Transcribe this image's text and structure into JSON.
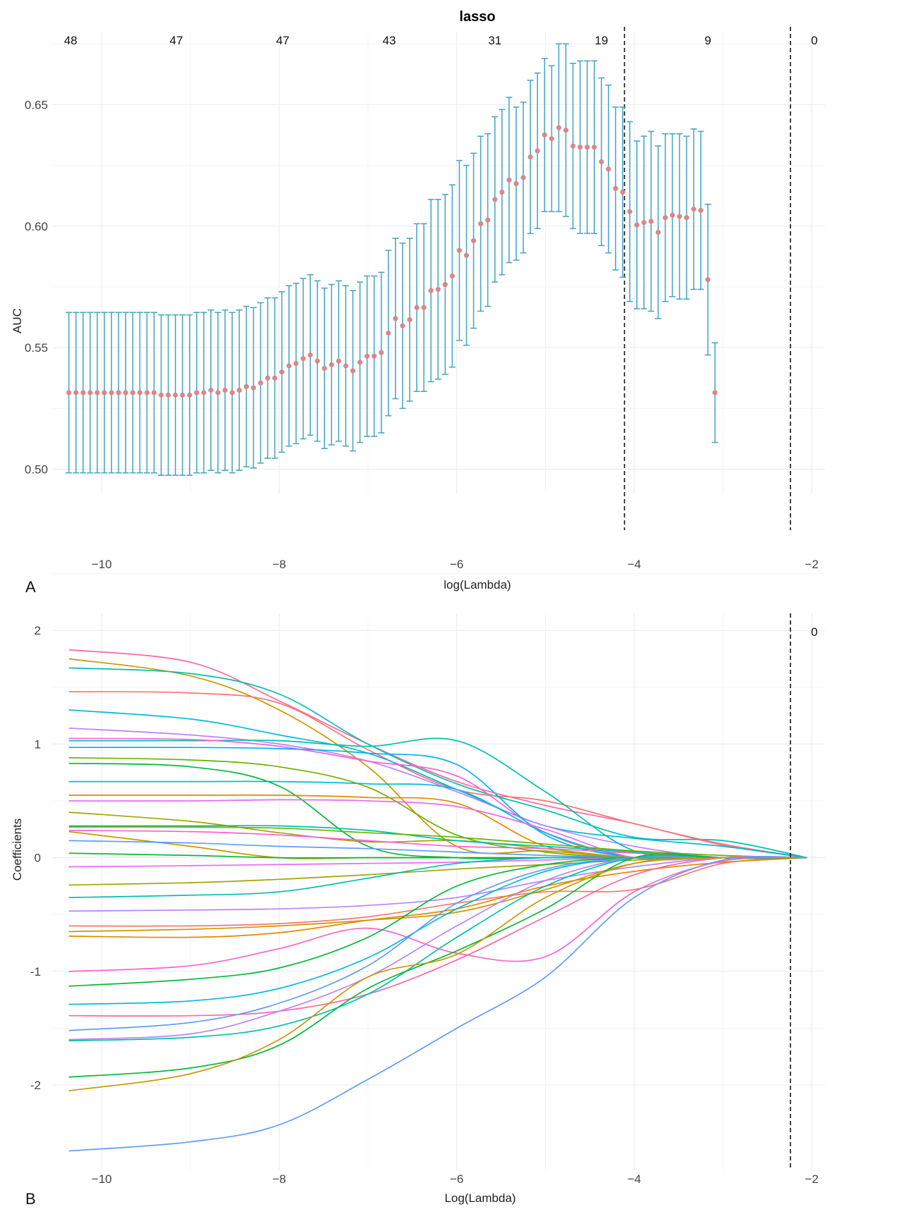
{
  "colors": {
    "errorbar": "#4aa8c4",
    "point": "#d9878a",
    "grid": "#ececec",
    "vline": "#111111",
    "palette": [
      "#f8766d",
      "#e58700",
      "#c99800",
      "#a3a500",
      "#6bb100",
      "#00ba38",
      "#00bf7d",
      "#00c0af",
      "#00bcd8",
      "#00b0f6",
      "#619cff",
      "#b983ff",
      "#e76bf3",
      "#fd61d1",
      "#ff67a4"
    ]
  },
  "panels": {
    "a_label": "A",
    "b_label": "B"
  },
  "chart_data": [
    {
      "type": "scatter",
      "panel": "A",
      "title": "lasso",
      "xlabel": "log(Lambda)",
      "ylabel": "AUC",
      "xlim": [
        -10.55,
        -1.85
      ],
      "ylim": [
        0.49,
        0.68
      ],
      "grid": true,
      "xticks": [
        -10,
        -8,
        -6,
        -4,
        -2
      ],
      "xtick_labels": [
        "−10",
        "−8",
        "−6",
        "−4",
        "−2"
      ],
      "yticks": [
        0.5,
        0.55,
        0.6,
        0.65
      ],
      "ytick_labels": [
        "0.50",
        "0.55",
        "0.60",
        "0.65"
      ],
      "top_axis": {
        "positions": [
          -10.35,
          -9.16,
          -7.96,
          -6.76,
          -5.57,
          -4.37,
          -3.17,
          -1.97
        ],
        "labels": [
          "48",
          "47",
          "47",
          "43",
          "31",
          "19",
          "9",
          "0"
        ]
      },
      "vlines": [
        -4.11,
        -2.24
      ],
      "x_start": -10.37,
      "x_step": 0.08,
      "mean": [
        0.5315,
        0.5315,
        0.5315,
        0.5315,
        0.5315,
        0.5315,
        0.5315,
        0.5315,
        0.5315,
        0.5315,
        0.5315,
        0.5315,
        0.5315,
        0.5305,
        0.5305,
        0.5305,
        0.5305,
        0.5305,
        0.5315,
        0.5315,
        0.5325,
        0.5315,
        0.5325,
        0.5315,
        0.5325,
        0.534,
        0.5335,
        0.5355,
        0.5375,
        0.5375,
        0.54,
        0.5425,
        0.5435,
        0.5455,
        0.547,
        0.5445,
        0.5415,
        0.543,
        0.5445,
        0.5425,
        0.5405,
        0.544,
        0.5465,
        0.5465,
        0.548,
        0.556,
        0.562,
        0.559,
        0.5615,
        0.5665,
        0.5665,
        0.5735,
        0.574,
        0.576,
        0.5795,
        0.59,
        0.588,
        0.594,
        0.601,
        0.6025,
        0.611,
        0.614,
        0.619,
        0.6175,
        0.62,
        0.6285,
        0.631,
        0.6375,
        0.636,
        0.6405,
        0.6395,
        0.633,
        0.6325,
        0.6325,
        0.6325,
        0.6265,
        0.6235,
        0.6155,
        0.614,
        0.606,
        0.6005,
        0.6015,
        0.602,
        0.5975,
        0.6035,
        0.6045,
        0.604,
        0.6035,
        0.607,
        0.6065,
        0.578,
        0.5315
      ],
      "lower": [
        0.4985,
        0.4985,
        0.4985,
        0.4985,
        0.4985,
        0.4985,
        0.4985,
        0.4985,
        0.4985,
        0.4985,
        0.4985,
        0.4985,
        0.4985,
        0.4975,
        0.4975,
        0.4975,
        0.4975,
        0.4975,
        0.4985,
        0.4985,
        0.4995,
        0.4985,
        0.4995,
        0.4985,
        0.4995,
        0.501,
        0.5005,
        0.5025,
        0.5045,
        0.5045,
        0.507,
        0.5095,
        0.5105,
        0.5125,
        0.514,
        0.5115,
        0.5085,
        0.51,
        0.5115,
        0.5095,
        0.5075,
        0.511,
        0.5135,
        0.5135,
        0.515,
        0.522,
        0.529,
        0.525,
        0.528,
        0.532,
        0.532,
        0.536,
        0.537,
        0.539,
        0.542,
        0.553,
        0.551,
        0.558,
        0.565,
        0.567,
        0.577,
        0.58,
        0.585,
        0.586,
        0.589,
        0.597,
        0.599,
        0.606,
        0.606,
        0.606,
        0.604,
        0.599,
        0.597,
        0.597,
        0.597,
        0.592,
        0.589,
        0.582,
        0.579,
        0.569,
        0.566,
        0.566,
        0.565,
        0.562,
        0.569,
        0.571,
        0.57,
        0.57,
        0.574,
        0.574,
        0.547,
        0.511
      ],
      "upper": [
        0.5645,
        0.5645,
        0.5645,
        0.5645,
        0.5645,
        0.5645,
        0.5645,
        0.5645,
        0.5645,
        0.5645,
        0.5645,
        0.5645,
        0.5645,
        0.5635,
        0.5635,
        0.5635,
        0.5635,
        0.5635,
        0.5645,
        0.5645,
        0.5655,
        0.5645,
        0.5655,
        0.5645,
        0.5655,
        0.567,
        0.5665,
        0.5685,
        0.5705,
        0.5705,
        0.573,
        0.5755,
        0.5765,
        0.5785,
        0.58,
        0.5775,
        0.5745,
        0.576,
        0.5775,
        0.5755,
        0.5735,
        0.577,
        0.5795,
        0.5795,
        0.581,
        0.59,
        0.595,
        0.593,
        0.595,
        0.601,
        0.601,
        0.611,
        0.611,
        0.613,
        0.617,
        0.627,
        0.625,
        0.63,
        0.637,
        0.638,
        0.645,
        0.648,
        0.653,
        0.649,
        0.651,
        0.66,
        0.663,
        0.669,
        0.666,
        0.675,
        0.675,
        0.667,
        0.668,
        0.668,
        0.668,
        0.661,
        0.658,
        0.649,
        0.649,
        0.643,
        0.635,
        0.637,
        0.639,
        0.633,
        0.638,
        0.638,
        0.638,
        0.637,
        0.64,
        0.639,
        0.609,
        0.552
      ]
    },
    {
      "type": "line",
      "panel": "B",
      "xlabel": "Log(Lambda)",
      "ylabel": "Coefficients",
      "xlim": [
        -10.55,
        -1.85
      ],
      "ylim": [
        -2.75,
        2.15
      ],
      "grid": true,
      "xticks": [
        -10,
        -8,
        -6,
        -4,
        -2
      ],
      "xtick_labels": [
        "−10",
        "−8",
        "−6",
        "−4",
        "−2"
      ],
      "yticks": [
        -2,
        -1,
        0,
        1,
        2
      ],
      "ytick_labels": [
        "-2",
        "-1",
        "0",
        "1",
        "2"
      ],
      "top_axis": {
        "positions": [
          -1.97
        ],
        "labels": [
          "0"
        ]
      },
      "vlines": [
        -2.24
      ],
      "x": [
        -10.37,
        -9,
        -8,
        -7,
        -6,
        -5,
        -4,
        -3,
        -2.05
      ],
      "series": [
        {
          "color": "#ff67a4",
          "values": [
            1.83,
            1.72,
            1.38,
            1.0,
            0.67,
            0.46,
            0.3,
            0.11,
            0.0
          ]
        },
        {
          "color": "#c99800",
          "values": [
            1.75,
            1.6,
            1.3,
            0.8,
            0.1,
            0.06,
            0.0,
            0.0,
            0.0
          ]
        },
        {
          "color": "#00c0af",
          "values": [
            1.67,
            1.62,
            1.44,
            1.0,
            0.65,
            0.42,
            0.18,
            0.15,
            0.0
          ]
        },
        {
          "color": "#f8766d",
          "values": [
            1.46,
            1.45,
            1.36,
            0.95,
            0.6,
            0.5,
            0.3,
            0.12,
            0.0
          ]
        },
        {
          "color": "#00bcd8",
          "values": [
            1.3,
            1.22,
            1.08,
            0.92,
            0.6,
            0.28,
            0.17,
            0.1,
            0.0
          ]
        },
        {
          "color": "#b983ff",
          "values": [
            1.14,
            1.08,
            1.0,
            0.85,
            0.58,
            0.28,
            0.1,
            0.0,
            0.0
          ]
        },
        {
          "color": "#00c0af",
          "values": [
            1.03,
            1.03,
            1.03,
            0.98,
            1.03,
            0.58,
            0.06,
            0.0,
            0.0
          ]
        },
        {
          "color": "#fd61d1",
          "values": [
            1.05,
            1.04,
            0.98,
            0.85,
            0.72,
            0.22,
            0.0,
            0.0,
            0.0
          ]
        },
        {
          "color": "#00b0f6",
          "values": [
            0.97,
            0.97,
            0.96,
            0.92,
            0.82,
            0.2,
            0.0,
            0.0,
            0.0
          ]
        },
        {
          "color": "#6bb100",
          "values": [
            0.88,
            0.86,
            0.8,
            0.62,
            0.2,
            0.05,
            0.0,
            0.0,
            0.0
          ]
        },
        {
          "color": "#00ba38",
          "values": [
            0.83,
            0.8,
            0.63,
            0.1,
            0.0,
            0.0,
            0.0,
            0.0,
            0.0
          ]
        },
        {
          "color": "#00bcd8",
          "values": [
            0.67,
            0.67,
            0.67,
            0.65,
            0.6,
            0.22,
            0.0,
            0.0,
            0.0
          ]
        },
        {
          "color": "#e58700",
          "values": [
            0.55,
            0.55,
            0.55,
            0.53,
            0.48,
            0.1,
            0.0,
            0.0,
            0.0
          ]
        },
        {
          "color": "#e76bf3",
          "values": [
            0.5,
            0.5,
            0.51,
            0.5,
            0.45,
            0.25,
            0.0,
            0.0,
            0.0
          ]
        },
        {
          "color": "#a3a500",
          "values": [
            0.4,
            0.32,
            0.22,
            0.14,
            0.15,
            0.08,
            0.0,
            0.0,
            0.0
          ]
        },
        {
          "color": "#00c0af",
          "values": [
            0.28,
            0.28,
            0.28,
            0.24,
            0.15,
            0.1,
            0.05,
            0.0,
            0.0
          ]
        },
        {
          "color": "#6bb100",
          "values": [
            0.27,
            0.27,
            0.26,
            0.22,
            0.18,
            0.12,
            0.06,
            0.02,
            0.0
          ]
        },
        {
          "color": "#fd61d1",
          "values": [
            0.24,
            0.23,
            0.2,
            0.15,
            0.1,
            0.08,
            0.04,
            0.0,
            0.0
          ]
        },
        {
          "color": "#c99800",
          "values": [
            0.23,
            0.1,
            0.0,
            0.0,
            0.0,
            0.0,
            0.0,
            0.0,
            0.0
          ]
        },
        {
          "color": "#619cff",
          "values": [
            0.15,
            0.13,
            0.1,
            0.08,
            0.05,
            0.02,
            0.0,
            0.0,
            0.0
          ]
        },
        {
          "color": "#00ba38",
          "values": [
            0.04,
            0.02,
            0.0,
            0.0,
            0.0,
            0.0,
            0.0,
            0.0,
            0.0
          ]
        },
        {
          "color": "#e76bf3",
          "values": [
            -0.08,
            -0.07,
            -0.06,
            -0.05,
            -0.04,
            -0.02,
            0.0,
            0.0,
            0.0
          ]
        },
        {
          "color": "#a3a500",
          "values": [
            -0.24,
            -0.22,
            -0.19,
            -0.15,
            -0.1,
            -0.06,
            -0.02,
            0.0,
            0.0
          ]
        },
        {
          "color": "#00c0af",
          "values": [
            -0.35,
            -0.33,
            -0.3,
            -0.18,
            -0.05,
            0.0,
            0.0,
            0.0,
            0.0
          ]
        },
        {
          "color": "#b983ff",
          "values": [
            -0.47,
            -0.46,
            -0.45,
            -0.42,
            -0.35,
            -0.2,
            -0.08,
            0.0,
            0.0
          ]
        },
        {
          "color": "#f8766d",
          "values": [
            -0.6,
            -0.6,
            -0.58,
            -0.52,
            -0.4,
            -0.3,
            -0.28,
            -0.05,
            0.0
          ]
        },
        {
          "color": "#c99800",
          "values": [
            -0.65,
            -0.63,
            -0.6,
            -0.55,
            -0.48,
            -0.28,
            -0.05,
            0.0,
            0.0
          ]
        },
        {
          "color": "#e58700",
          "values": [
            -0.69,
            -0.7,
            -0.66,
            -0.55,
            -0.45,
            -0.25,
            -0.12,
            -0.04,
            0.0
          ]
        },
        {
          "color": "#fd61d1",
          "values": [
            -1.0,
            -0.95,
            -0.8,
            -0.62,
            -0.84,
            -0.87,
            -0.3,
            -0.03,
            0.0
          ]
        },
        {
          "color": "#00ba38",
          "values": [
            -1.13,
            -1.07,
            -0.97,
            -0.7,
            -0.25,
            -0.06,
            0.0,
            0.0,
            0.0
          ]
        },
        {
          "color": "#00bcd8",
          "values": [
            -1.29,
            -1.26,
            -1.15,
            -0.88,
            -0.45,
            -0.12,
            0.0,
            0.0,
            0.0
          ]
        },
        {
          "color": "#ff67a4",
          "values": [
            -1.39,
            -1.39,
            -1.35,
            -1.2,
            -0.9,
            -0.52,
            -0.15,
            0.0,
            0.0
          ]
        },
        {
          "color": "#619cff",
          "values": [
            -1.52,
            -1.45,
            -1.28,
            -0.95,
            -0.4,
            -0.1,
            0.0,
            0.0,
            0.0
          ]
        },
        {
          "color": "#b983ff",
          "values": [
            -1.6,
            -1.55,
            -1.35,
            -1.05,
            -0.6,
            -0.2,
            0.0,
            0.0,
            0.0
          ]
        },
        {
          "color": "#00c0af",
          "values": [
            -1.61,
            -1.58,
            -1.48,
            -1.2,
            -0.7,
            -0.25,
            0.0,
            0.0,
            0.0
          ]
        },
        {
          "color": "#00ba38",
          "values": [
            -1.93,
            -1.85,
            -1.65,
            -1.15,
            -0.82,
            -0.45,
            0.0,
            0.0,
            0.0
          ]
        },
        {
          "color": "#c99800",
          "values": [
            -2.05,
            -1.9,
            -1.6,
            -1.05,
            -0.85,
            -0.35,
            -0.05,
            0.0,
            0.0
          ]
        },
        {
          "color": "#619cff",
          "values": [
            -2.58,
            -2.5,
            -2.35,
            -1.95,
            -1.5,
            -1.05,
            -0.35,
            -0.02,
            0.0
          ]
        }
      ]
    }
  ]
}
